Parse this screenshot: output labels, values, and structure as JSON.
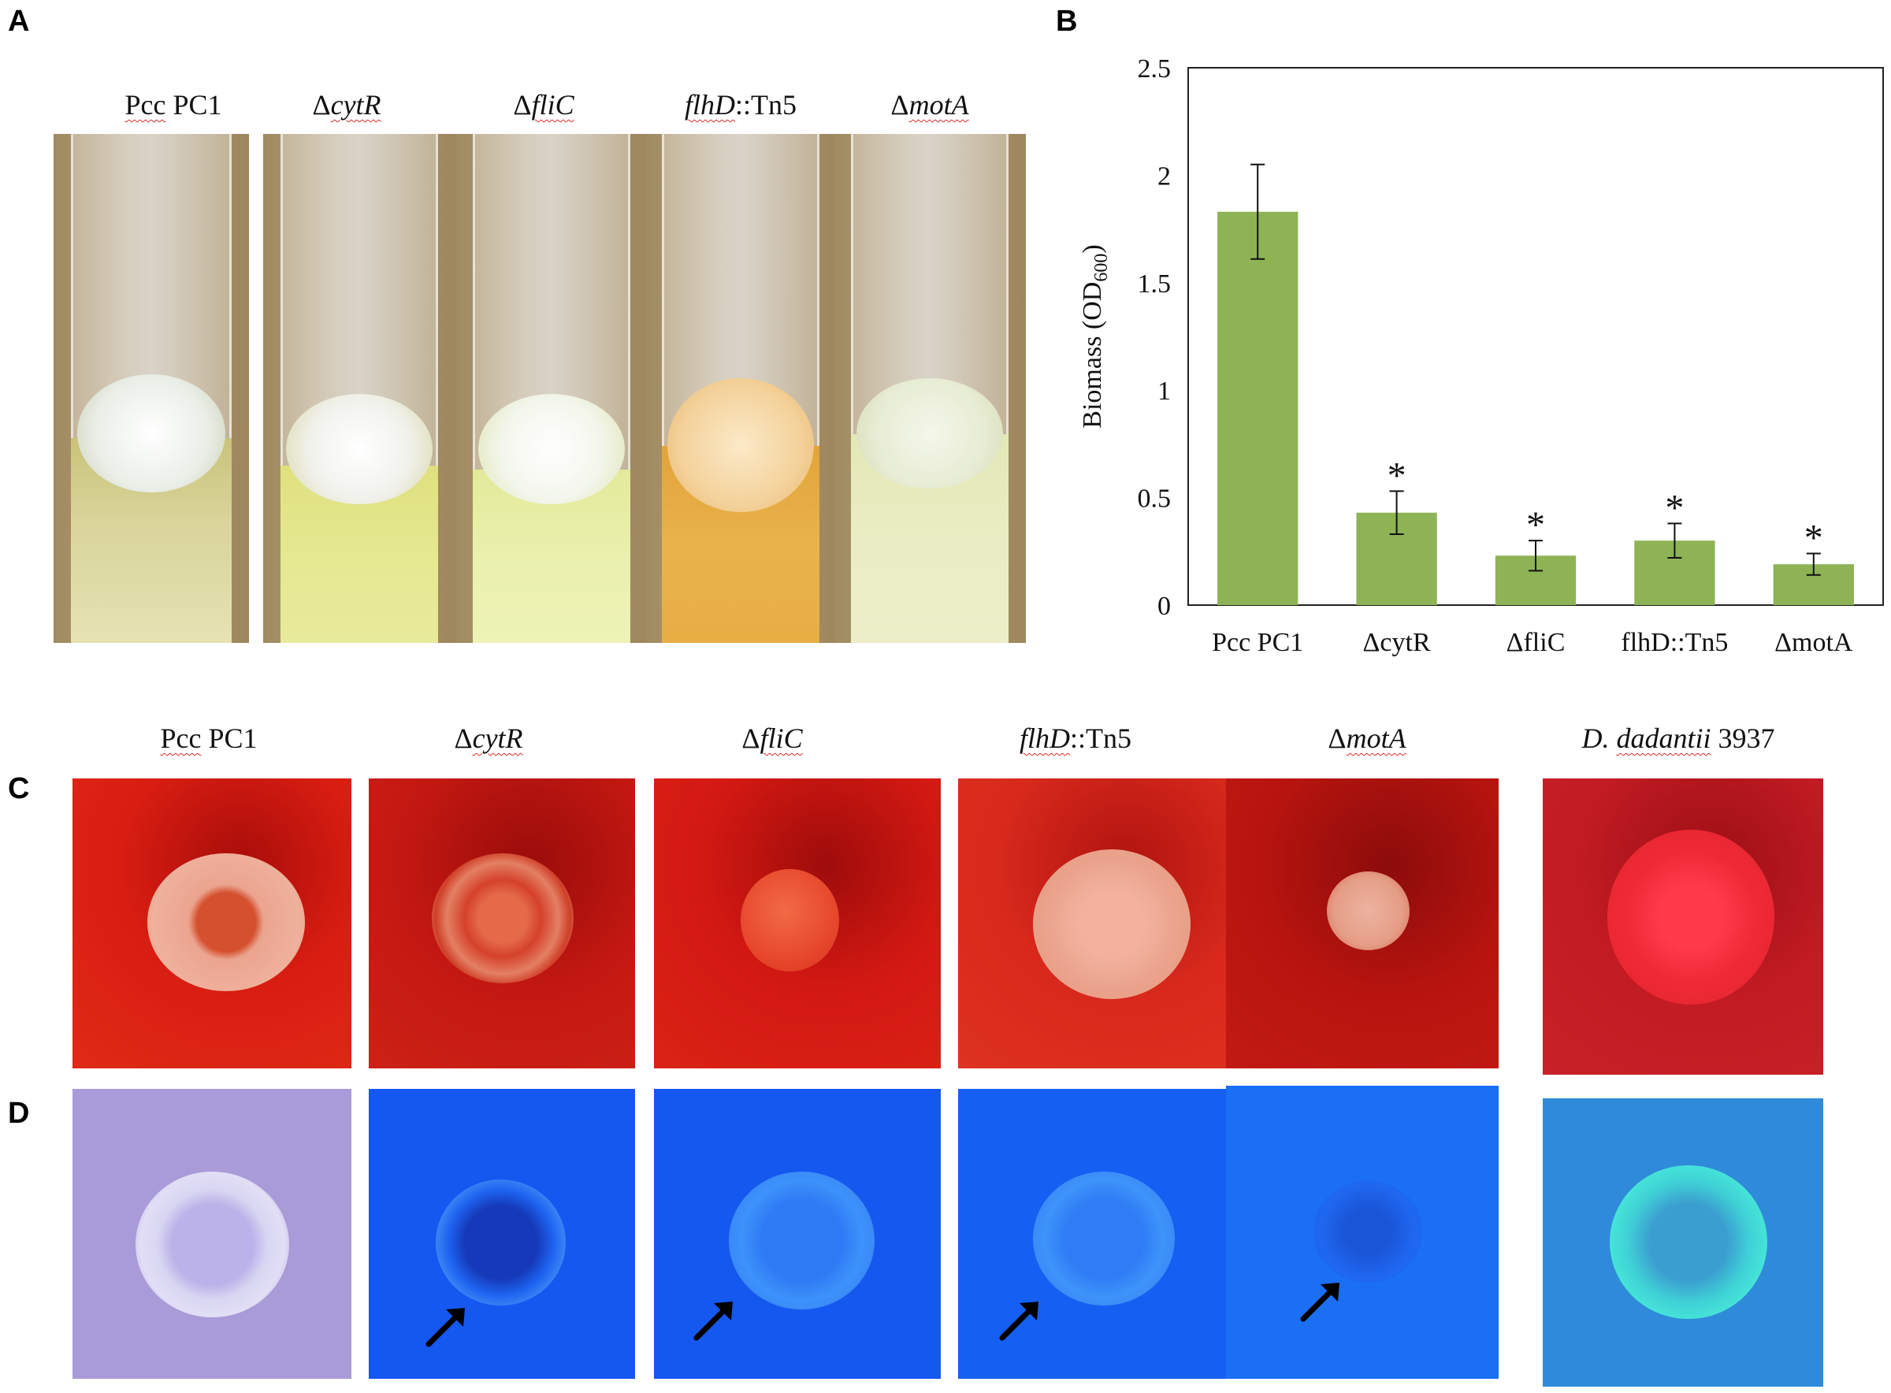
{
  "panels": {
    "a": "A",
    "b": "B",
    "c": "C",
    "d": "D"
  },
  "strains_top": [
    {
      "prefix": "",
      "name": "Pcc",
      "suffix": " PC1"
    },
    {
      "prefix": "Δ",
      "name": "cytR",
      "suffix": ""
    },
    {
      "prefix": "Δ",
      "name": "fliC",
      "suffix": ""
    },
    {
      "prefix": "",
      "name": "flhD",
      "suffix": "::Tn5"
    },
    {
      "prefix": "Δ",
      "name": "motA",
      "suffix": ""
    }
  ],
  "strains_bottom": [
    {
      "prefix": "",
      "name": "Pcc",
      "suffix": " PC1"
    },
    {
      "prefix": "Δ",
      "name": "cytR",
      "suffix": ""
    },
    {
      "prefix": "Δ",
      "name": "fliC",
      "suffix": ""
    },
    {
      "prefix": "",
      "name": "flhD",
      "suffix": "::Tn5"
    },
    {
      "prefix": "Δ",
      "name": "motA",
      "suffix": ""
    },
    {
      "prefix": "D. ",
      "name": "dadantii",
      "suffix": " 3937"
    }
  ],
  "chart_data": {
    "type": "bar",
    "title": "",
    "ylabel": "Biomass (OD600)",
    "ylabel_main": "Biomass (OD",
    "ylabel_sub": "600",
    "ylabel_close": ")",
    "categories": [
      "Pcc PC1",
      "ΔcytR",
      "ΔfliC",
      "flhD::Tn5",
      "ΔmotA"
    ],
    "values": [
      1.83,
      0.43,
      0.23,
      0.3,
      0.19
    ],
    "errors": [
      0.22,
      0.1,
      0.07,
      0.08,
      0.05
    ],
    "significance": [
      "",
      "*",
      "*",
      "*",
      "*"
    ],
    "yticks": [
      "0",
      "0.5",
      "1",
      "1.5",
      "2",
      "2.5"
    ],
    "ylim": [
      0,
      2.5
    ],
    "bar_color": "#8db355",
    "grid": false
  },
  "colors": {
    "congo_red": "#cc1a12",
    "calcofluor_blue": "#1750e8",
    "arrow": "#000000"
  }
}
